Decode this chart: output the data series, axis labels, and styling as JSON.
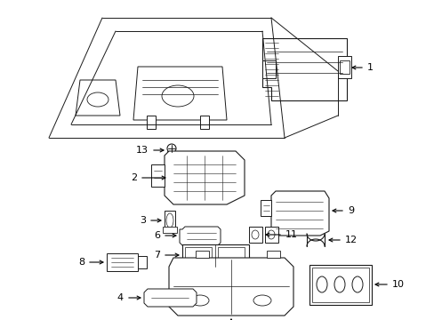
{
  "bg_color": "#ffffff",
  "line_color": "#1a1a1a",
  "text_color": "#000000",
  "fig_width": 4.89,
  "fig_height": 3.6,
  "dpi": 100
}
